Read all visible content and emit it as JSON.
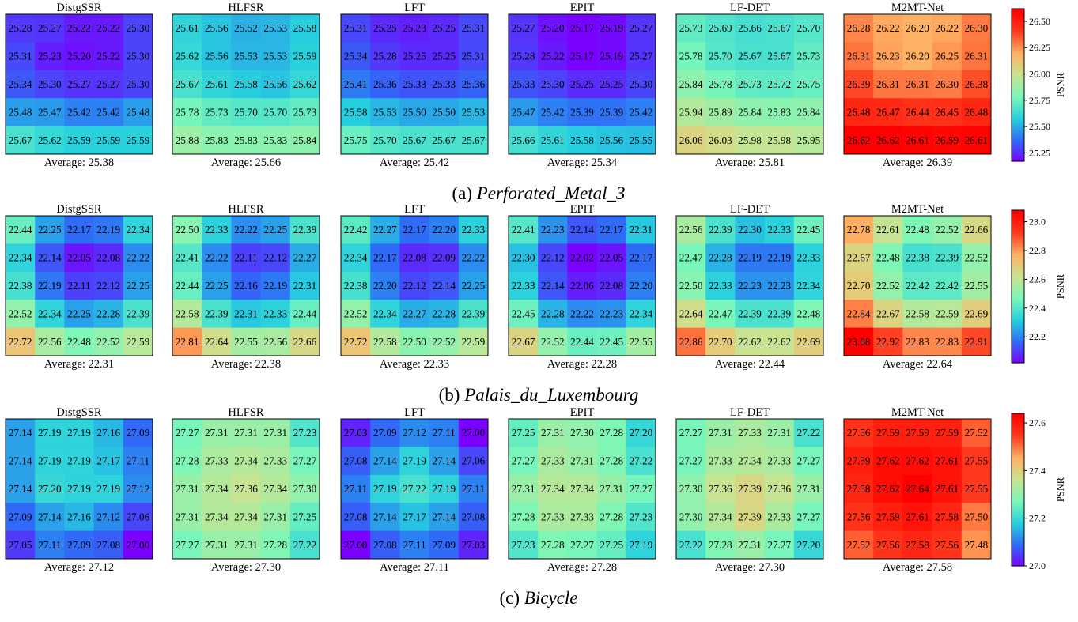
{
  "chart_data": [
    {
      "type": "heatmap",
      "caption_label": "(a)",
      "caption_name": "Perforated_Metal_3",
      "colorbar_label": "PSNR",
      "colorbar_range": [
        25.17,
        26.62
      ],
      "colorbar_ticks": [
        "25.25",
        "25.50",
        "25.75",
        "26.00",
        "26.25",
        "26.50"
      ],
      "colormap": [
        "#7a00ff",
        "#2f6cf7",
        "#27d0de",
        "#7bf7b8",
        "#cbe38f",
        "#ffb164",
        "#ff3a1d",
        "#ff0000"
      ],
      "panels": [
        {
          "title": "DistgSSR",
          "average": "Average: 25.38",
          "grid": [
            [
              "25.28",
              "25.27",
              "25.22",
              "25.22",
              "25.30"
            ],
            [
              "25.31",
              "25.23",
              "25.20",
              "25.22",
              "25.30"
            ],
            [
              "25.34",
              "25.30",
              "25.27",
              "25.27",
              "25.30"
            ],
            [
              "25.48",
              "25.47",
              "25.42",
              "25.42",
              "25.48"
            ],
            [
              "25.67",
              "25.62",
              "25.59",
              "25.59",
              "25.59"
            ]
          ]
        },
        {
          "title": "HLFSR",
          "average": "Average: 25.66",
          "grid": [
            [
              "25.61",
              "25.56",
              "25.52",
              "25.53",
              "25.58"
            ],
            [
              "25.62",
              "25.56",
              "25.53",
              "25.53",
              "25.59"
            ],
            [
              "25.67",
              "25.61",
              "25.58",
              "25.56",
              "25.62"
            ],
            [
              "25.78",
              "25.73",
              "25.70",
              "25.70",
              "25.73"
            ],
            [
              "25.88",
              "25.83",
              "25.83",
              "25.83",
              "25.84"
            ]
          ]
        },
        {
          "title": "LFT",
          "average": "Average: 25.42",
          "grid": [
            [
              "25.31",
              "25.25",
              "25.23",
              "25.25",
              "25.31"
            ],
            [
              "25.34",
              "25.28",
              "25.25",
              "25.25",
              "25.31"
            ],
            [
              "25.41",
              "25.36",
              "25.33",
              "25.33",
              "25.36"
            ],
            [
              "25.58",
              "25.53",
              "25.50",
              "25.50",
              "25.53"
            ],
            [
              "25.75",
              "25.70",
              "25.67",
              "25.67",
              "25.67"
            ]
          ]
        },
        {
          "title": "EPIT",
          "average": "Average: 25.34",
          "grid": [
            [
              "25.27",
              "25.20",
              "25.17",
              "25.19",
              "25.27"
            ],
            [
              "25.28",
              "25.22",
              "25.17",
              "25.19",
              "25.27"
            ],
            [
              "25.33",
              "25.30",
              "25.25",
              "25.25",
              "25.30"
            ],
            [
              "25.47",
              "25.42",
              "25.39",
              "25.39",
              "25.42"
            ],
            [
              "25.66",
              "25.61",
              "25.58",
              "25.56",
              "25.55"
            ]
          ]
        },
        {
          "title": "LF-DET",
          "average": "Average: 25.81",
          "grid": [
            [
              "25.73",
              "25.69",
              "25.66",
              "25.67",
              "25.70"
            ],
            [
              "25.78",
              "25.70",
              "25.67",
              "25.67",
              "25.73"
            ],
            [
              "25.84",
              "25.78",
              "25.73",
              "25.72",
              "25.75"
            ],
            [
              "25.94",
              "25.89",
              "25.84",
              "25.83",
              "25.84"
            ],
            [
              "26.06",
              "26.03",
              "25.98",
              "25.98",
              "25.95"
            ]
          ]
        },
        {
          "title": "M2MT-Net",
          "average": "Average: 26.39",
          "grid": [
            [
              "26.28",
              "26.22",
              "26.20",
              "26.22",
              "26.30"
            ],
            [
              "26.31",
              "26.23",
              "26.20",
              "26.25",
              "26.31"
            ],
            [
              "26.39",
              "26.31",
              "26.31",
              "26.30",
              "26.38"
            ],
            [
              "26.48",
              "26.47",
              "26.44",
              "26.45",
              "26.48"
            ],
            [
              "26.62",
              "26.62",
              "26.61",
              "26.59",
              "26.61"
            ]
          ]
        }
      ]
    },
    {
      "type": "heatmap",
      "caption_label": "(b)",
      "caption_name": "Palais_du_Luxembourg",
      "colorbar_label": "PSNR",
      "colorbar_range": [
        22.02,
        23.08
      ],
      "colorbar_ticks": [
        "22.2",
        "22.4",
        "22.6",
        "22.8",
        "23.0"
      ],
      "colormap": [
        "#7a00ff",
        "#2f6cf7",
        "#27d0de",
        "#7bf7b8",
        "#cbe38f",
        "#ffb164",
        "#ff3a1d",
        "#ff0000"
      ],
      "panels": [
        {
          "title": "DistgSSR",
          "average": "Average: 22.31",
          "grid": [
            [
              "22.44",
              "22.25",
              "22.17",
              "22.19",
              "22.34"
            ],
            [
              "22.34",
              "22.14",
              "22.05",
              "22.08",
              "22.22"
            ],
            [
              "22.38",
              "22.19",
              "22.11",
              "22.12",
              "22.25"
            ],
            [
              "22.52",
              "22.34",
              "22.25",
              "22.28",
              "22.39"
            ],
            [
              "22.72",
              "22.56",
              "22.48",
              "22.52",
              "22.59"
            ]
          ]
        },
        {
          "title": "HLFSR",
          "average": "Average: 22.38",
          "grid": [
            [
              "22.50",
              "22.33",
              "22.22",
              "22.25",
              "22.39"
            ],
            [
              "22.41",
              "22.22",
              "22.11",
              "22.12",
              "22.27"
            ],
            [
              "22.44",
              "22.25",
              "22.16",
              "22.19",
              "22.31"
            ],
            [
              "22.58",
              "22.39",
              "22.31",
              "22.33",
              "22.44"
            ],
            [
              "22.81",
              "22.64",
              "22.55",
              "22.56",
              "22.66"
            ]
          ]
        },
        {
          "title": "LFT",
          "average": "Average: 22.33",
          "grid": [
            [
              "22.42",
              "22.27",
              "22.17",
              "22.20",
              "22.33"
            ],
            [
              "22.34",
              "22.17",
              "22.08",
              "22.09",
              "22.22"
            ],
            [
              "22.38",
              "22.20",
              "22.12",
              "22.14",
              "22.25"
            ],
            [
              "22.52",
              "22.34",
              "22.27",
              "22.28",
              "22.39"
            ],
            [
              "22.72",
              "22.58",
              "22.50",
              "22.52",
              "22.59"
            ]
          ]
        },
        {
          "title": "EPIT",
          "average": "Average: 22.28",
          "grid": [
            [
              "22.41",
              "22.23",
              "22.14",
              "22.17",
              "22.31"
            ],
            [
              "22.30",
              "22.12",
              "22.02",
              "22.05",
              "22.17"
            ],
            [
              "22.33",
              "22.14",
              "22.06",
              "22.08",
              "22.20"
            ],
            [
              "22.45",
              "22.28",
              "22.22",
              "22.23",
              "22.34"
            ],
            [
              "22.67",
              "22.52",
              "22.44",
              "22.45",
              "22.55"
            ]
          ]
        },
        {
          "title": "LF-DET",
          "average": "Average: 22.44",
          "grid": [
            [
              "22.56",
              "22.39",
              "22.30",
              "22.33",
              "22.45"
            ],
            [
              "22.47",
              "22.28",
              "22.19",
              "22.19",
              "22.33"
            ],
            [
              "22.50",
              "22.33",
              "22.23",
              "22.23",
              "22.34"
            ],
            [
              "22.64",
              "22.47",
              "22.39",
              "22.39",
              "22.48"
            ],
            [
              "22.86",
              "22.70",
              "22.62",
              "22.62",
              "22.69"
            ]
          ]
        },
        {
          "title": "M2MT-Net",
          "average": "Average: 22.64",
          "grid": [
            [
              "22.78",
              "22.61",
              "22.48",
              "22.52",
              "22.66"
            ],
            [
              "22.67",
              "22.48",
              "22.38",
              "22.39",
              "22.52"
            ],
            [
              "22.70",
              "22.52",
              "22.42",
              "22.42",
              "22.55"
            ],
            [
              "22.84",
              "22.67",
              "22.58",
              "22.59",
              "22.69"
            ],
            [
              "23.08",
              "22.92",
              "22.83",
              "22.83",
              "22.91"
            ]
          ]
        }
      ]
    },
    {
      "type": "heatmap",
      "caption_label": "(c)",
      "caption_name": "Bicycle",
      "colorbar_label": "PSNR",
      "colorbar_range": [
        27.0,
        27.64
      ],
      "colorbar_ticks": [
        "27.0",
        "27.2",
        "27.4",
        "27.6"
      ],
      "colormap": [
        "#7a00ff",
        "#2f6cf7",
        "#27d0de",
        "#7bf7b8",
        "#cbe38f",
        "#ffb164",
        "#ff3a1d",
        "#ff0000"
      ],
      "panels": [
        {
          "title": "DistgSSR",
          "average": "Average: 27.12",
          "grid": [
            [
              "27.14",
              "27.19",
              "27.19",
              "27.16",
              "27.09"
            ],
            [
              "27.14",
              "27.19",
              "27.19",
              "27.17",
              "27.11"
            ],
            [
              "27.14",
              "27.20",
              "27.19",
              "27.19",
              "27.12"
            ],
            [
              "27.09",
              "27.14",
              "27.16",
              "27.12",
              "27.06"
            ],
            [
              "27.05",
              "27.11",
              "27.09",
              "27.08",
              "27.00"
            ]
          ]
        },
        {
          "title": "HLFSR",
          "average": "Average: 27.30",
          "grid": [
            [
              "27.27",
              "27.31",
              "27.31",
              "27.31",
              "27.23"
            ],
            [
              "27.28",
              "27.33",
              "27.34",
              "27.33",
              "27.27"
            ],
            [
              "27.31",
              "27.34",
              "27.36",
              "27.34",
              "27.30"
            ],
            [
              "27.31",
              "27.34",
              "27.34",
              "27.31",
              "27.25"
            ],
            [
              "27.27",
              "27.31",
              "27.31",
              "27.28",
              "27.22"
            ]
          ]
        },
        {
          "title": "LFT",
          "average": "Average: 27.11",
          "grid": [
            [
              "27.03",
              "27.09",
              "27.12",
              "27.11",
              "27.00"
            ],
            [
              "27.08",
              "27.14",
              "27.19",
              "27.14",
              "27.06"
            ],
            [
              "27.11",
              "27.19",
              "27.22",
              "27.19",
              "27.11"
            ],
            [
              "27.08",
              "27.14",
              "27.17",
              "27.14",
              "27.08"
            ],
            [
              "27.00",
              "27.08",
              "27.11",
              "27.09",
              "27.03"
            ]
          ]
        },
        {
          "title": "EPIT",
          "average": "Average: 27.28",
          "grid": [
            [
              "27.25",
              "27.31",
              "27.30",
              "27.28",
              "27.20"
            ],
            [
              "27.27",
              "27.33",
              "27.31",
              "27.28",
              "27.22"
            ],
            [
              "27.31",
              "27.34",
              "27.34",
              "27.31",
              "27.27"
            ],
            [
              "27.28",
              "27.33",
              "27.33",
              "27.28",
              "27.23"
            ],
            [
              "27.23",
              "27.28",
              "27.27",
              "27.25",
              "27.19"
            ]
          ]
        },
        {
          "title": "LF-DET",
          "average": "Average: 27.30",
          "grid": [
            [
              "27.27",
              "27.31",
              "27.33",
              "27.31",
              "27.22"
            ],
            [
              "27.27",
              "27.33",
              "27.34",
              "27.33",
              "27.27"
            ],
            [
              "27.30",
              "27.36",
              "27.39",
              "27.36",
              "27.31"
            ],
            [
              "27.30",
              "27.34",
              "27.39",
              "27.33",
              "27.27"
            ],
            [
              "27.22",
              "27.28",
              "27.31",
              "27.27",
              "27.20"
            ]
          ]
        },
        {
          "title": "M2MT-Net",
          "average": "Average: 27.58",
          "grid": [
            [
              "27.56",
              "27.59",
              "27.59",
              "27.59",
              "27.52"
            ],
            [
              "27.59",
              "27.62",
              "27.62",
              "27.61",
              "27.55"
            ],
            [
              "27.58",
              "27.62",
              "27.64",
              "27.61",
              "27.55"
            ],
            [
              "27.56",
              "27.59",
              "27.61",
              "27.58",
              "27.50"
            ],
            [
              "27.52",
              "27.56",
              "27.58",
              "27.56",
              "27.48"
            ]
          ]
        }
      ]
    }
  ]
}
